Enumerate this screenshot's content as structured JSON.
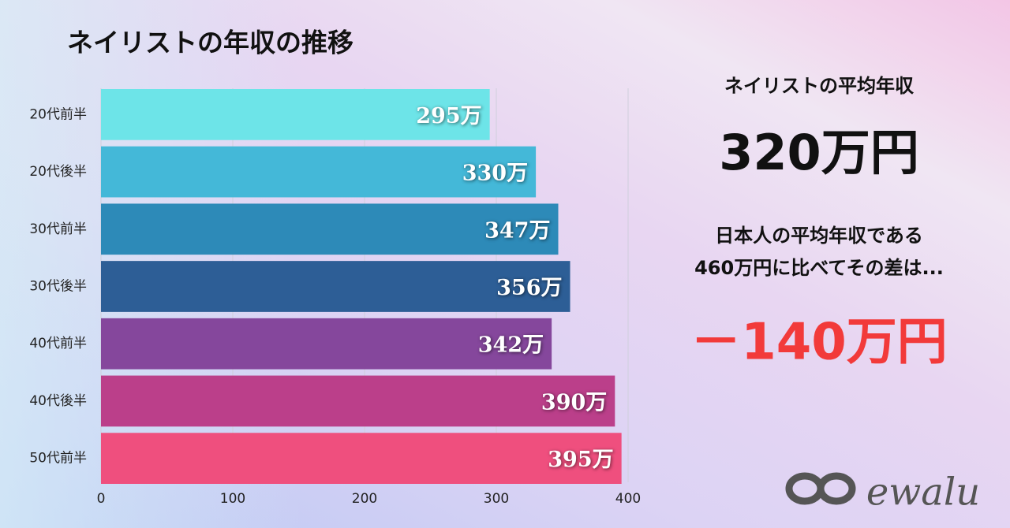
{
  "chart_data": {
    "type": "bar",
    "orientation": "horizontal",
    "title": "ネイリストの年収の推移",
    "categories": [
      "20代前半",
      "20代後半",
      "30代前半",
      "30代後半",
      "40代前半",
      "40代後半",
      "50代前半"
    ],
    "values": [
      295,
      330,
      347,
      356,
      342,
      390,
      395
    ],
    "value_labels": [
      "295万",
      "330万",
      "347万",
      "356万",
      "342万",
      "390万",
      "395万"
    ],
    "colors": [
      "#6de4e8",
      "#44b8d8",
      "#2d8ab8",
      "#2d5e96",
      "#85479c",
      "#bb3f8a",
      "#ef4f7e"
    ],
    "xlim": [
      0,
      400
    ],
    "xticks": [
      0,
      100,
      200,
      300,
      400
    ],
    "grid": true
  },
  "panel": {
    "heading": "ネイリストの平均年収",
    "average": "320万円",
    "note_lines": [
      "日本人の平均年収である",
      "460万円に比べてその差は..."
    ],
    "difference": "－140万円"
  },
  "logo": "ewalu"
}
